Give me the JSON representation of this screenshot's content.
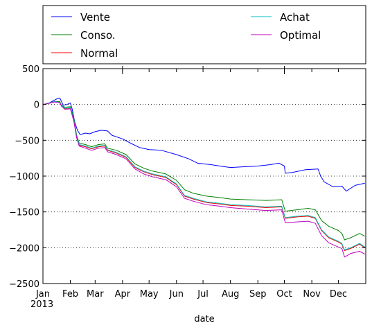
{
  "chart_data": {
    "type": "line",
    "title": "",
    "xlabel": "date",
    "ylabel": "",
    "year_label": "2013",
    "x_ticks": [
      "Jan",
      "Feb",
      "Mar",
      "Apr",
      "May",
      "Jun",
      "Jul",
      "Aug",
      "Sep",
      "Oct",
      "Nov",
      "Dec"
    ],
    "xlim": [
      "2013-01-01",
      "2013-12-31"
    ],
    "ylim": [
      -2500,
      500
    ],
    "y_ticks": [
      500,
      0,
      -500,
      -1000,
      -1500,
      -2000,
      -2500
    ],
    "y_tick_labels": [
      "500",
      "0",
      "−500",
      "−1000",
      "−1500",
      "−2000",
      "−2500"
    ],
    "grid": "horizontal dotted",
    "legend": {
      "placement": "above plot, two columns",
      "columns": 2
    },
    "series": [
      {
        "name": "Vente",
        "color": "#0000ff",
        "points": [
          [
            "2013-01-01",
            0
          ],
          [
            "2013-01-08",
            20
          ],
          [
            "2013-01-14",
            60
          ],
          [
            "2013-01-17",
            80
          ],
          [
            "2013-01-20",
            90
          ],
          [
            "2013-01-22",
            40
          ],
          [
            "2013-01-24",
            -10
          ],
          [
            "2013-01-28",
            0
          ],
          [
            "2013-02-01",
            20
          ],
          [
            "2013-02-03",
            -60
          ],
          [
            "2013-02-06",
            -250
          ],
          [
            "2013-02-09",
            -360
          ],
          [
            "2013-02-12",
            -420
          ],
          [
            "2013-02-18",
            -400
          ],
          [
            "2013-02-23",
            -410
          ],
          [
            "2013-03-01",
            -380
          ],
          [
            "2013-03-08",
            -360
          ],
          [
            "2013-03-15",
            -370
          ],
          [
            "2013-03-20",
            -430
          ],
          [
            "2013-04-01",
            -480
          ],
          [
            "2013-04-10",
            -540
          ],
          [
            "2013-04-20",
            -600
          ],
          [
            "2013-05-01",
            -630
          ],
          [
            "2013-05-15",
            -640
          ],
          [
            "2013-06-01",
            -700
          ],
          [
            "2013-06-15",
            -760
          ],
          [
            "2013-06-25",
            -820
          ],
          [
            "2013-07-10",
            -840
          ],
          [
            "2013-07-20",
            -860
          ],
          [
            "2013-08-01",
            -880
          ],
          [
            "2013-08-15",
            -870
          ],
          [
            "2013-09-01",
            -860
          ],
          [
            "2013-09-15",
            -840
          ],
          [
            "2013-09-25",
            -820
          ],
          [
            "2013-10-01",
            -860
          ],
          [
            "2013-10-02",
            -960
          ],
          [
            "2013-10-10",
            -950
          ],
          [
            "2013-10-25",
            -910
          ],
          [
            "2013-11-08",
            -900
          ],
          [
            "2013-11-11",
            -1000
          ],
          [
            "2013-11-15",
            -1080
          ],
          [
            "2013-11-25",
            -1150
          ],
          [
            "2013-12-05",
            -1140
          ],
          [
            "2013-12-10",
            -1210
          ],
          [
            "2013-12-20",
            -1130
          ],
          [
            "2013-12-31",
            -1100
          ]
        ]
      },
      {
        "name": "Conso.",
        "color": "#008000",
        "points": [
          [
            "2013-01-01",
            0
          ],
          [
            "2013-01-08",
            20
          ],
          [
            "2013-01-14",
            40
          ],
          [
            "2013-01-20",
            40
          ],
          [
            "2013-01-22",
            -10
          ],
          [
            "2013-01-26",
            -40
          ],
          [
            "2013-02-01",
            -30
          ],
          [
            "2013-02-05",
            -200
          ],
          [
            "2013-02-08",
            -420
          ],
          [
            "2013-02-11",
            -540
          ],
          [
            "2013-02-18",
            -560
          ],
          [
            "2013-02-25",
            -590
          ],
          [
            "2013-03-05",
            -560
          ],
          [
            "2013-03-12",
            -550
          ],
          [
            "2013-03-15",
            -610
          ],
          [
            "2013-03-25",
            -640
          ],
          [
            "2013-04-05",
            -700
          ],
          [
            "2013-04-15",
            -830
          ],
          [
            "2013-04-25",
            -890
          ],
          [
            "2013-05-05",
            -930
          ],
          [
            "2013-05-20",
            -970
          ],
          [
            "2013-06-01",
            -1060
          ],
          [
            "2013-06-10",
            -1190
          ],
          [
            "2013-06-20",
            -1240
          ],
          [
            "2013-07-05",
            -1280
          ],
          [
            "2013-07-20",
            -1300
          ],
          [
            "2013-08-01",
            -1320
          ],
          [
            "2013-08-20",
            -1330
          ],
          [
            "2013-09-10",
            -1340
          ],
          [
            "2013-09-28",
            -1330
          ],
          [
            "2013-10-02",
            -1490
          ],
          [
            "2013-10-15",
            -1470
          ],
          [
            "2013-10-28",
            -1450
          ],
          [
            "2013-11-05",
            -1470
          ],
          [
            "2013-11-12",
            -1620
          ],
          [
            "2013-11-20",
            -1700
          ],
          [
            "2013-12-01",
            -1760
          ],
          [
            "2013-12-05",
            -1800
          ],
          [
            "2013-12-08",
            -1890
          ],
          [
            "2013-12-15",
            -1860
          ],
          [
            "2013-12-25",
            -1800
          ],
          [
            "2013-12-31",
            -1840
          ]
        ]
      },
      {
        "name": "Normal",
        "color": "#ff0000",
        "points": [
          [
            "2013-01-01",
            0
          ],
          [
            "2013-01-08",
            20
          ],
          [
            "2013-01-14",
            40
          ],
          [
            "2013-01-20",
            30
          ],
          [
            "2013-01-22",
            -20
          ],
          [
            "2013-01-26",
            -60
          ],
          [
            "2013-02-01",
            -50
          ],
          [
            "2013-02-05",
            -230
          ],
          [
            "2013-02-08",
            -450
          ],
          [
            "2013-02-11",
            -570
          ],
          [
            "2013-02-18",
            -590
          ],
          [
            "2013-02-25",
            -620
          ],
          [
            "2013-03-05",
            -590
          ],
          [
            "2013-03-12",
            -580
          ],
          [
            "2013-03-15",
            -640
          ],
          [
            "2013-03-25",
            -680
          ],
          [
            "2013-04-05",
            -740
          ],
          [
            "2013-04-15",
            -880
          ],
          [
            "2013-04-25",
            -940
          ],
          [
            "2013-05-05",
            -980
          ],
          [
            "2013-05-20",
            -1020
          ],
          [
            "2013-06-01",
            -1120
          ],
          [
            "2013-06-10",
            -1280
          ],
          [
            "2013-06-20",
            -1320
          ],
          [
            "2013-07-05",
            -1370
          ],
          [
            "2013-07-20",
            -1390
          ],
          [
            "2013-08-01",
            -1410
          ],
          [
            "2013-08-20",
            -1420
          ],
          [
            "2013-09-10",
            -1440
          ],
          [
            "2013-09-28",
            -1430
          ],
          [
            "2013-10-02",
            -1590
          ],
          [
            "2013-10-15",
            -1570
          ],
          [
            "2013-10-28",
            -1560
          ],
          [
            "2013-11-05",
            -1590
          ],
          [
            "2013-11-12",
            -1760
          ],
          [
            "2013-11-20",
            -1860
          ],
          [
            "2013-12-01",
            -1920
          ],
          [
            "2013-12-05",
            -1950
          ],
          [
            "2013-12-08",
            -2040
          ],
          [
            "2013-12-15",
            -2010
          ],
          [
            "2013-12-25",
            -1950
          ],
          [
            "2013-12-31",
            -2000
          ]
        ]
      },
      {
        "name": "Achat",
        "color": "#00bfbf",
        "points": [
          [
            "2013-01-01",
            0
          ],
          [
            "2013-01-08",
            20
          ],
          [
            "2013-01-14",
            40
          ],
          [
            "2013-01-20",
            30
          ],
          [
            "2013-01-22",
            -15
          ],
          [
            "2013-01-26",
            -55
          ],
          [
            "2013-02-01",
            -45
          ],
          [
            "2013-02-05",
            -225
          ],
          [
            "2013-02-08",
            -440
          ],
          [
            "2013-02-11",
            -560
          ],
          [
            "2013-02-18",
            -580
          ],
          [
            "2013-02-25",
            -610
          ],
          [
            "2013-03-05",
            -580
          ],
          [
            "2013-03-12",
            -570
          ],
          [
            "2013-03-15",
            -630
          ],
          [
            "2013-03-25",
            -670
          ],
          [
            "2013-04-05",
            -730
          ],
          [
            "2013-04-15",
            -870
          ],
          [
            "2013-04-25",
            -930
          ],
          [
            "2013-05-05",
            -970
          ],
          [
            "2013-05-20",
            -1010
          ],
          [
            "2013-06-01",
            -1110
          ],
          [
            "2013-06-10",
            -1270
          ],
          [
            "2013-06-20",
            -1310
          ],
          [
            "2013-07-05",
            -1360
          ],
          [
            "2013-07-20",
            -1380
          ],
          [
            "2013-08-01",
            -1400
          ],
          [
            "2013-08-20",
            -1410
          ],
          [
            "2013-09-10",
            -1430
          ],
          [
            "2013-09-28",
            -1420
          ],
          [
            "2013-10-02",
            -1580
          ],
          [
            "2013-10-15",
            -1560
          ],
          [
            "2013-10-28",
            -1550
          ],
          [
            "2013-11-05",
            -1580
          ],
          [
            "2013-11-12",
            -1750
          ],
          [
            "2013-11-20",
            -1850
          ],
          [
            "2013-12-01",
            -1910
          ],
          [
            "2013-12-05",
            -1940
          ],
          [
            "2013-12-08",
            -2030
          ],
          [
            "2013-12-15",
            -2000
          ],
          [
            "2013-12-25",
            -1940
          ],
          [
            "2013-12-31",
            -1990
          ]
        ]
      },
      {
        "name": "Optimal",
        "color": "#bf00bf",
        "points": [
          [
            "2013-01-01",
            0
          ],
          [
            "2013-01-08",
            15
          ],
          [
            "2013-01-14",
            35
          ],
          [
            "2013-01-20",
            25
          ],
          [
            "2013-01-22",
            -25
          ],
          [
            "2013-01-26",
            -70
          ],
          [
            "2013-02-01",
            -60
          ],
          [
            "2013-02-05",
            -240
          ],
          [
            "2013-02-08",
            -460
          ],
          [
            "2013-02-11",
            -580
          ],
          [
            "2013-02-18",
            -610
          ],
          [
            "2013-02-25",
            -640
          ],
          [
            "2013-03-05",
            -610
          ],
          [
            "2013-03-12",
            -600
          ],
          [
            "2013-03-15",
            -660
          ],
          [
            "2013-03-25",
            -700
          ],
          [
            "2013-04-05",
            -760
          ],
          [
            "2013-04-15",
            -900
          ],
          [
            "2013-04-25",
            -970
          ],
          [
            "2013-05-05",
            -1010
          ],
          [
            "2013-05-20",
            -1050
          ],
          [
            "2013-06-01",
            -1150
          ],
          [
            "2013-06-10",
            -1310
          ],
          [
            "2013-06-20",
            -1350
          ],
          [
            "2013-07-05",
            -1400
          ],
          [
            "2013-07-20",
            -1420
          ],
          [
            "2013-08-01",
            -1440
          ],
          [
            "2013-08-20",
            -1460
          ],
          [
            "2013-09-10",
            -1480
          ],
          [
            "2013-09-28",
            -1470
          ],
          [
            "2013-10-02",
            -1650
          ],
          [
            "2013-10-15",
            -1640
          ],
          [
            "2013-10-28",
            -1630
          ],
          [
            "2013-11-05",
            -1660
          ],
          [
            "2013-11-12",
            -1830
          ],
          [
            "2013-11-20",
            -1930
          ],
          [
            "2013-12-01",
            -1990
          ],
          [
            "2013-12-05",
            -2010
          ],
          [
            "2013-12-08",
            -2130
          ],
          [
            "2013-12-15",
            -2080
          ],
          [
            "2013-12-25",
            -2050
          ],
          [
            "2013-12-31",
            -2090
          ]
        ]
      }
    ]
  }
}
